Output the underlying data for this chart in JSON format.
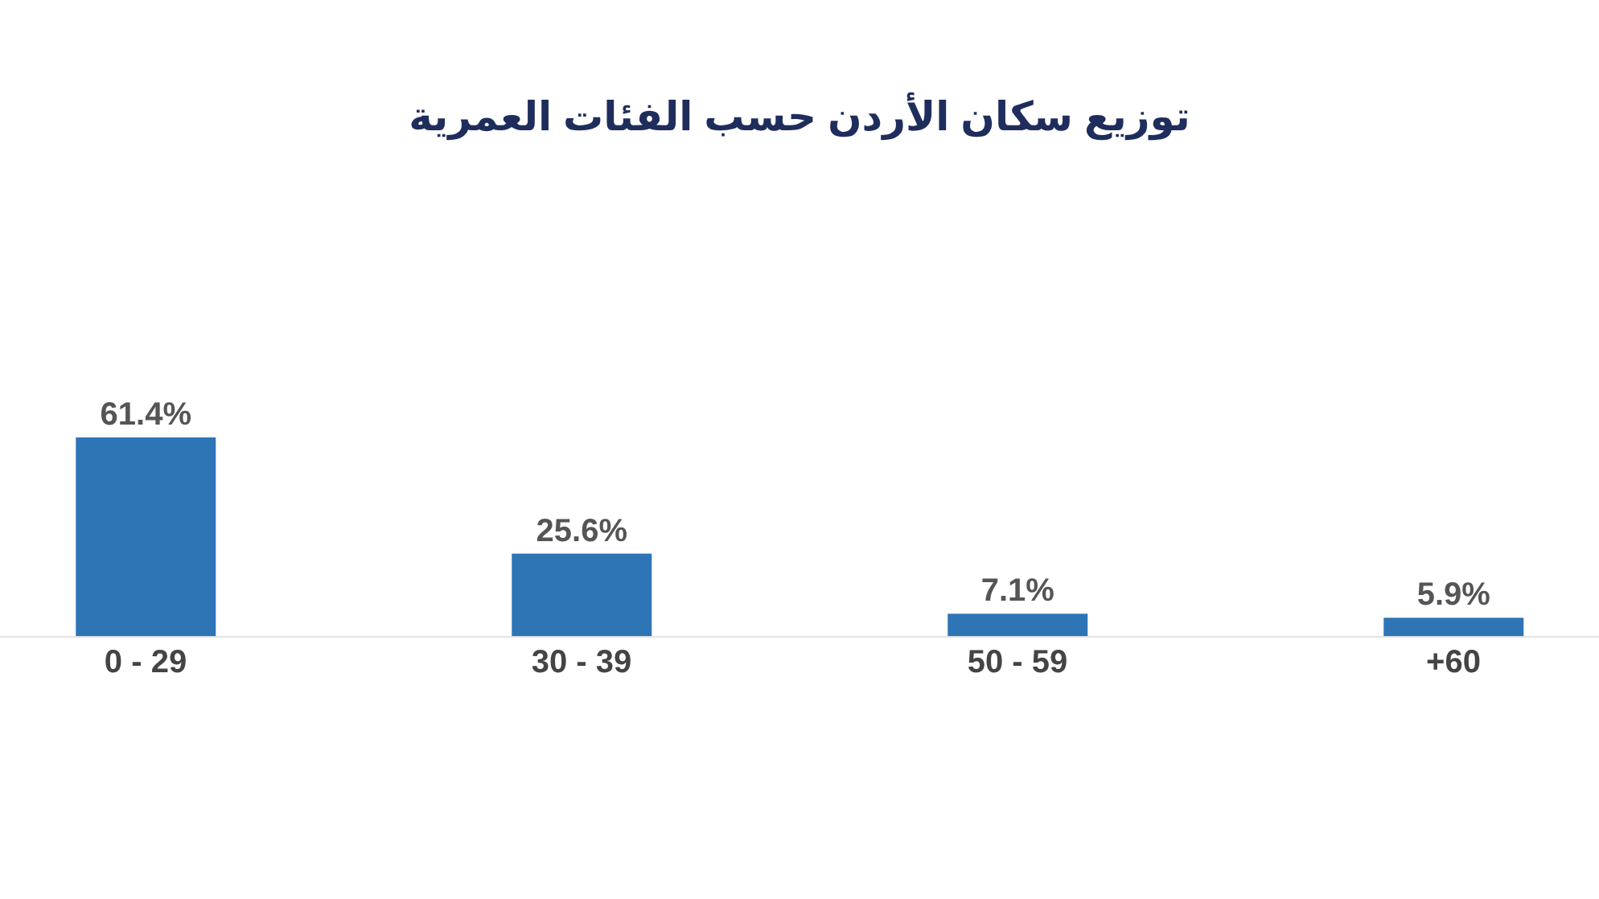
{
  "chart_data": {
    "type": "bar",
    "title": "توزيع سكان الأردن حسب الفئات العمرية",
    "categories": [
      "0 - 29",
      "30 - 39",
      "50 - 59",
      "+60"
    ],
    "values": [
      61.4,
      25.6,
      7.1,
      5.9
    ],
    "value_labels": [
      "61.4%",
      "25.6%",
      "7.1%",
      "5.9%"
    ],
    "color": "#2e75b6"
  }
}
